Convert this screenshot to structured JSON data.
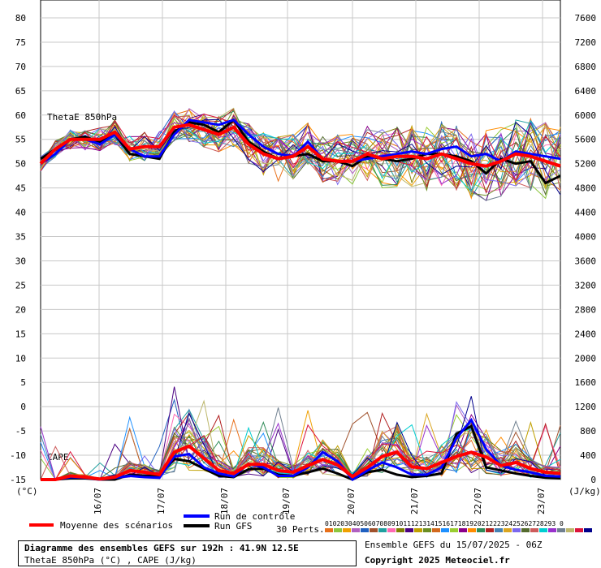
{
  "chart_data": {
    "type": "line",
    "title": "Diagramme des ensembles GEFS sur 192h : 41.9N 12.5E",
    "subtitle": "ThetaE 850hPa (°C) , CAPE (J/kg)",
    "left_axis": {
      "unit": "(°C)",
      "ticks": [
        80,
        75,
        70,
        65,
        60,
        55,
        50,
        45,
        40,
        35,
        30,
        25,
        20,
        15,
        10,
        5,
        0,
        -5,
        -10,
        -15
      ],
      "range": [
        -15,
        80
      ]
    },
    "right_axis": {
      "unit": "(J/kg)",
      "ticks": [
        7600,
        7200,
        6800,
        6400,
        6000,
        5600,
        5200,
        4800,
        4400,
        4000,
        3600,
        3200,
        2800,
        2400,
        2000,
        1600,
        1200,
        800,
        400,
        0
      ],
      "range": [
        0,
        7600
      ]
    },
    "x_labels": [
      "16/07",
      "17/07",
      "18/07",
      "19/07",
      "20/07",
      "21/07",
      "22/07",
      "23/07"
    ],
    "series_labels": {
      "thetae": "ThetaE 850hPa",
      "cape": "CAPE"
    },
    "series": [
      {
        "name": "Moyenne des scénarios",
        "color": "#ff0000",
        "thetae": [
          50,
          53,
          55,
          55,
          55,
          56.5,
          53,
          53.5,
          53.5,
          57.5,
          58,
          57,
          56,
          57.5,
          54,
          52,
          51,
          51.5,
          53.5,
          51,
          50.5,
          50.5,
          52,
          51,
          51.5,
          51.5,
          51,
          52,
          51,
          50,
          49.5,
          50.5,
          52,
          51.5,
          50.5,
          49.5
        ],
        "cape": [
          0,
          0,
          60,
          40,
          10,
          40,
          150,
          120,
          80,
          450,
          550,
          350,
          150,
          100,
          250,
          250,
          150,
          120,
          230,
          330,
          240,
          50,
          200,
          380,
          450,
          210,
          180,
          280,
          380,
          450,
          370,
          230,
          280,
          180,
          120,
          100
        ]
      },
      {
        "name": "Run de contrôle",
        "color": "#0000ff",
        "thetae": [
          50,
          52,
          55,
          55,
          54,
          56,
          53,
          51.5,
          51.5,
          56,
          59,
          58.5,
          58,
          59,
          56,
          53.5,
          52,
          51.5,
          54.5,
          51,
          50.5,
          50.5,
          51,
          51.5,
          52,
          52.5,
          52,
          53,
          53.5,
          51.5,
          52,
          50.5,
          52.5,
          52,
          51.5,
          51
        ],
        "cape": [
          0,
          0,
          40,
          30,
          0,
          30,
          60,
          40,
          30,
          380,
          420,
          200,
          100,
          50,
          260,
          200,
          60,
          60,
          200,
          450,
          300,
          0,
          150,
          280,
          200,
          80,
          80,
          200,
          680,
          980,
          500,
          230,
          160,
          120,
          60,
          50
        ]
      },
      {
        "name": "Run GFS",
        "color": "#000000",
        "thetae": [
          51,
          53,
          55,
          55.5,
          54.5,
          56,
          52,
          51.5,
          51,
          56.5,
          58.5,
          58,
          56.5,
          59,
          54.5,
          52.5,
          51,
          51.5,
          52,
          50.5,
          50.5,
          49.5,
          51.5,
          51,
          50.5,
          51,
          52,
          52,
          51.5,
          50.5,
          48,
          51,
          50,
          50.5,
          46,
          47.5
        ],
        "cape": [
          0,
          0,
          20,
          20,
          0,
          0,
          80,
          60,
          60,
          340,
          300,
          180,
          60,
          40,
          170,
          180,
          80,
          60,
          120,
          180,
          100,
          0,
          120,
          160,
          80,
          40,
          60,
          100,
          750,
          880,
          200,
          150,
          100,
          60,
          30,
          20
        ]
      }
    ],
    "perturbation_count": 30,
    "perturbation_colors": [
      "#e8701a",
      "#8cc63f",
      "#f0a000",
      "#b060c0",
      "#2060c0",
      "#a0522d",
      "#20a0a0",
      "#ff69b4",
      "#808000",
      "#4b0082",
      "#c0a000",
      "#6b8e23",
      "#d2691e",
      "#1e90ff",
      "#9acd32",
      "#8b008b",
      "#ff8c00",
      "#2e8b57",
      "#b22222",
      "#4682b4",
      "#daa520",
      "#7b68ee",
      "#556b2f",
      "#cd5c5c",
      "#00ced1",
      "#9932cc",
      "#708090",
      "#bdb76b",
      "#dc143c",
      "#00008b"
    ]
  },
  "legend": {
    "mean_label": "Moyenne des scénarios",
    "control_label": "Run de contrôle",
    "gfs_label": "Run GFS",
    "perts_label": "30 Perts.",
    "pert_numbers": "01020304050607080910111213141516171819202122232425262728293 0"
  },
  "info": {
    "ensemble_line": "Ensemble GEFS du 15/07/2025 - 06Z",
    "copyright_line": "Copyright 2025 Meteociel.fr",
    "title_line": "Diagramme des ensembles GEFS sur 192h : 41.9N 12.5E",
    "subtitle_line": "ThetaE 850hPa (°C) , CAPE (J/kg)"
  }
}
